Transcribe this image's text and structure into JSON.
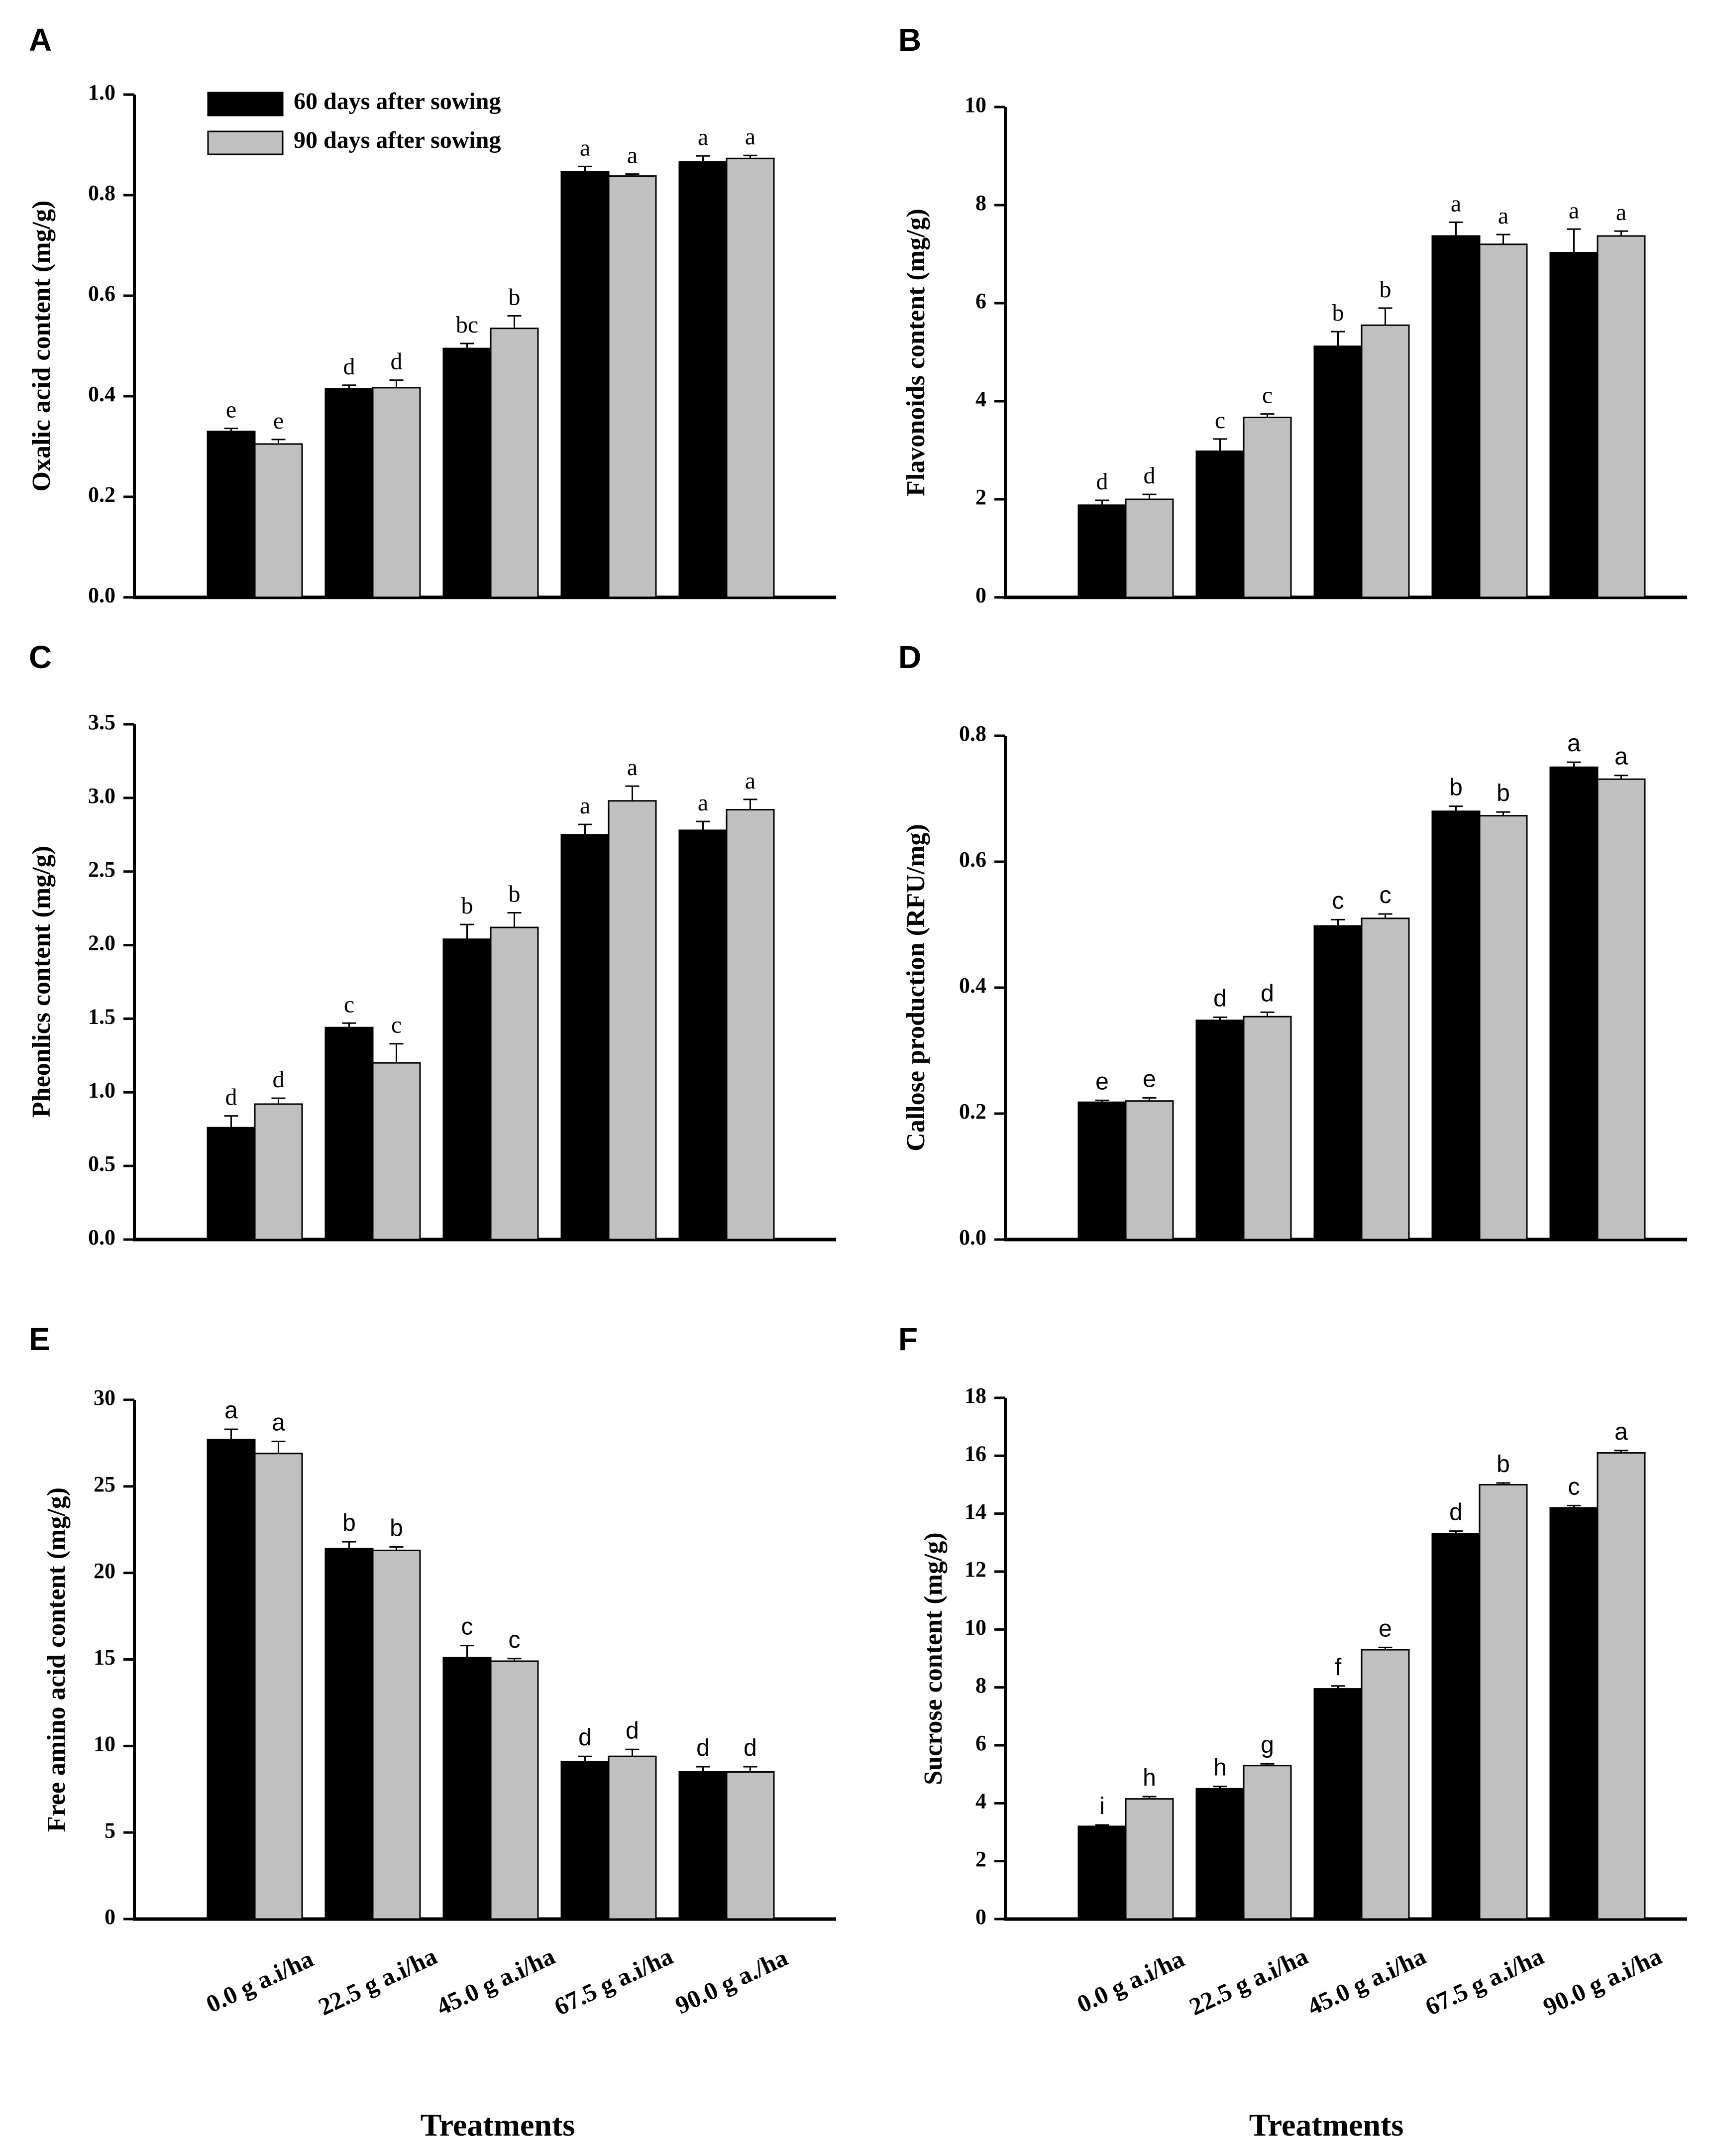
{
  "legend": {
    "series": [
      {
        "name": "60 days after sowing",
        "color": "#000000"
      },
      {
        "name": "90 days after sowing",
        "color": "#c0c0c0"
      }
    ]
  },
  "colors": {
    "bar_60": "#000000",
    "bar_90": "#c0c0c0",
    "axis": "#000000"
  },
  "xlabel": "Treatments",
  "categories_left": [
    "0.0 g a.i/ha",
    "22.5 g a.i/ha",
    "45.0 g a.i/ha",
    "67.5 g a.i/ha",
    "90.0 g a./ha"
  ],
  "categories_right": [
    "0.0 g a.i/ha",
    "22.5 g a.i/ha",
    "45.0 g a.i/ha",
    "67.5 g a.i/ha",
    "90.0 g a.i/ha"
  ],
  "chart_data": [
    {
      "panel": "A",
      "type": "bar",
      "ylabel": "Oxalic acid content (mg/g)",
      "ylim": [
        0,
        1.0
      ],
      "ytick_values": [
        0,
        0.2,
        0.4,
        0.6,
        0.8,
        1.0
      ],
      "ytick_labels": [
        "0.0",
        "0.2",
        "0.4",
        "0.6",
        "0.8",
        "1.0"
      ],
      "series": [
        {
          "name": "60 days after sowing",
          "values": [
            0.33,
            0.415,
            0.495,
            0.847,
            0.866
          ],
          "errors": [
            0.006,
            0.007,
            0.01,
            0.01,
            0.012
          ],
          "letters": [
            "e",
            "d",
            "bc",
            "a",
            "a"
          ]
        },
        {
          "name": "90 days after sowing",
          "values": [
            0.305,
            0.417,
            0.535,
            0.838,
            0.873
          ],
          "errors": [
            0.009,
            0.015,
            0.025,
            0.004,
            0.006
          ],
          "letters": [
            "e",
            "d",
            "b",
            "a",
            "a"
          ]
        }
      ]
    },
    {
      "panel": "B",
      "type": "bar",
      "ylabel": "Flavonoids content (mg/g)",
      "ylim": [
        0,
        10
      ],
      "ytick_values": [
        0,
        2,
        4,
        6,
        8,
        10
      ],
      "ytick_labels": [
        "0",
        "2",
        "4",
        "6",
        "8",
        "10"
      ],
      "series": [
        {
          "name": "60 days after sowing",
          "values": [
            1.88,
            2.98,
            5.12,
            7.37,
            7.03
          ],
          "errors": [
            0.1,
            0.25,
            0.3,
            0.28,
            0.48
          ],
          "letters": [
            "d",
            "c",
            "b",
            "a",
            "a"
          ]
        },
        {
          "name": "90 days after sowing",
          "values": [
            2.0,
            3.67,
            5.55,
            7.2,
            7.37
          ],
          "errors": [
            0.1,
            0.07,
            0.35,
            0.2,
            0.1
          ],
          "letters": [
            "d",
            "c",
            "b",
            "a",
            "a"
          ]
        }
      ]
    },
    {
      "panel": "C",
      "type": "bar",
      "ylabel": "Pheonlics content (mg/g)",
      "ylim": [
        0,
        3.5
      ],
      "ytick_values": [
        0,
        0.5,
        1.0,
        1.5,
        2.0,
        2.5,
        3.0,
        3.5
      ],
      "ytick_labels": [
        "0.0",
        "0.5",
        "1.0",
        "1.5",
        "2.0",
        "2.5",
        "3.0",
        "3.5"
      ],
      "series": [
        {
          "name": "60 days after sowing",
          "values": [
            0.76,
            1.44,
            2.04,
            2.75,
            2.78
          ],
          "errors": [
            0.08,
            0.03,
            0.1,
            0.07,
            0.06
          ],
          "letters": [
            "d",
            "c",
            "b",
            "a",
            "a"
          ]
        },
        {
          "name": "90 days after sowing",
          "values": [
            0.92,
            1.2,
            2.12,
            2.98,
            2.92
          ],
          "errors": [
            0.04,
            0.13,
            0.1,
            0.1,
            0.07
          ],
          "letters": [
            "d",
            "c",
            "b",
            "a",
            "a"
          ]
        }
      ]
    },
    {
      "panel": "D",
      "type": "bar",
      "ylabel": "Callose production (RFU/mg)",
      "ylim": [
        0,
        0.8
      ],
      "ytick_values": [
        0,
        0.2,
        0.4,
        0.6,
        0.8
      ],
      "ytick_labels": [
        "0.0",
        "0.2",
        "0.4",
        "0.6",
        "0.8"
      ],
      "series": [
        {
          "name": "60 days after sowing",
          "values": [
            0.218,
            0.348,
            0.498,
            0.68,
            0.75
          ],
          "errors": [
            0.003,
            0.005,
            0.01,
            0.008,
            0.008
          ],
          "letters": [
            "e",
            "d",
            "c",
            "b",
            "a"
          ]
        },
        {
          "name": "90 days after sowing",
          "values": [
            0.22,
            0.354,
            0.51,
            0.673,
            0.731
          ],
          "errors": [
            0.005,
            0.007,
            0.007,
            0.006,
            0.006
          ],
          "letters": [
            "e",
            "d",
            "c",
            "b",
            "a"
          ]
        }
      ]
    },
    {
      "panel": "E",
      "type": "bar",
      "ylabel": "Free amino acid content (mg/g)",
      "ylim": [
        0,
        30
      ],
      "ytick_values": [
        0,
        5,
        10,
        15,
        20,
        25,
        30
      ],
      "ytick_labels": [
        "0",
        "5",
        "10",
        "15",
        "20",
        "25",
        "30"
      ],
      "series": [
        {
          "name": "60 days after sowing",
          "values": [
            27.7,
            21.4,
            15.1,
            9.1,
            8.5
          ],
          "errors": [
            0.6,
            0.4,
            0.7,
            0.3,
            0.3
          ],
          "letters": [
            "a",
            "b",
            "c",
            "d",
            "d"
          ]
        },
        {
          "name": "90 days after sowing",
          "values": [
            26.9,
            21.3,
            14.9,
            9.4,
            8.5
          ],
          "errors": [
            0.7,
            0.2,
            0.15,
            0.4,
            0.3
          ],
          "letters": [
            "a",
            "b",
            "c",
            "d",
            "d"
          ]
        }
      ]
    },
    {
      "panel": "F",
      "type": "bar",
      "ylabel": "Sucrose content (mg/g)",
      "ylim": [
        0,
        18
      ],
      "ytick_values": [
        0,
        2,
        4,
        6,
        8,
        10,
        12,
        14,
        16,
        18
      ],
      "ytick_labels": [
        "0",
        "2",
        "4",
        "6",
        "8",
        "10",
        "12",
        "14",
        "16",
        "18"
      ],
      "series": [
        {
          "name": "60 days after sowing",
          "values": [
            3.2,
            4.5,
            7.95,
            13.3,
            14.2
          ],
          "errors": [
            0.05,
            0.08,
            0.1,
            0.1,
            0.08
          ],
          "letters": [
            "i",
            "h",
            "f",
            "d",
            "c"
          ]
        },
        {
          "name": "90 days after sowing",
          "values": [
            4.15,
            5.3,
            9.3,
            15.0,
            16.1
          ],
          "errors": [
            0.08,
            0.06,
            0.08,
            0.06,
            0.08
          ],
          "letters": [
            "h",
            "g",
            "e",
            "b",
            "a"
          ]
        }
      ]
    }
  ]
}
